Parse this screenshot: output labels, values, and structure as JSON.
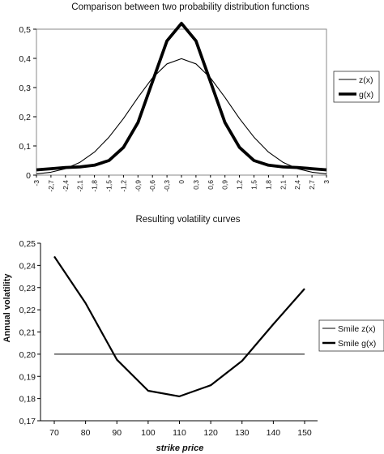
{
  "chart_data": [
    {
      "type": "line",
      "title": "Comparison between two probability distribution functions",
      "xlabel": "",
      "ylabel": "",
      "ylim": [
        0,
        0.5
      ],
      "yticks": [
        "0",
        "0,1",
        "0,2",
        "0,3",
        "0,4",
        "0,5"
      ],
      "x": [
        -3,
        -2.7,
        -2.4,
        -2.1,
        -1.8,
        -1.5,
        -1.2,
        -0.9,
        -0.6,
        -0.3,
        0,
        0.3,
        0.6,
        0.9,
        1.2,
        1.5,
        1.8,
        2.1,
        2.4,
        2.7,
        3
      ],
      "xticklabels": [
        "-3",
        "-2,7",
        "-2,4",
        "-2,1",
        "-1,8",
        "-1,5",
        "-1,2",
        "-0,9",
        "-0,6",
        "-0,3",
        "0",
        "0,3",
        "0,6",
        "0,9",
        "1,2",
        "1,5",
        "1,8",
        "2,1",
        "2,4",
        "2,7",
        "3"
      ],
      "series": [
        {
          "name": "z(x)",
          "style": "thin",
          "values": [
            0.004,
            0.01,
            0.022,
            0.044,
            0.079,
            0.13,
            0.194,
            0.266,
            0.333,
            0.381,
            0.399,
            0.381,
            0.333,
            0.266,
            0.194,
            0.13,
            0.079,
            0.044,
            0.022,
            0.01,
            0.004
          ]
        },
        {
          "name": "g(x)",
          "style": "thick",
          "values": [
            0.018,
            0.022,
            0.026,
            0.028,
            0.034,
            0.05,
            0.095,
            0.18,
            0.32,
            0.46,
            0.52,
            0.46,
            0.32,
            0.18,
            0.095,
            0.05,
            0.034,
            0.028,
            0.026,
            0.022,
            0.018
          ]
        }
      ],
      "legend_position": "right",
      "grid": false
    },
    {
      "type": "line",
      "title": "Resulting volatility curves",
      "xlabel": "strike price",
      "ylabel": "Annual volatility",
      "ylim": [
        0.17,
        0.25
      ],
      "yticks": [
        "0,17",
        "0,18",
        "0,19",
        "0,20",
        "0,21",
        "0,22",
        "0,23",
        "0,24",
        "0,25"
      ],
      "categories": [
        "70",
        "80",
        "90",
        "100",
        "110",
        "120",
        "130",
        "140",
        "150"
      ],
      "series": [
        {
          "name": "Smile z(x)",
          "style": "thin",
          "values": [
            0.2,
            0.2,
            0.2,
            0.2,
            0.2,
            0.2,
            0.2,
            0.2,
            0.2
          ]
        },
        {
          "name": "Smile g(x)",
          "style": "thick",
          "values": [
            0.244,
            0.223,
            0.1975,
            0.1835,
            0.181,
            0.186,
            0.197,
            0.2135,
            0.2295
          ]
        }
      ],
      "legend_position": "right",
      "grid": false
    }
  ]
}
